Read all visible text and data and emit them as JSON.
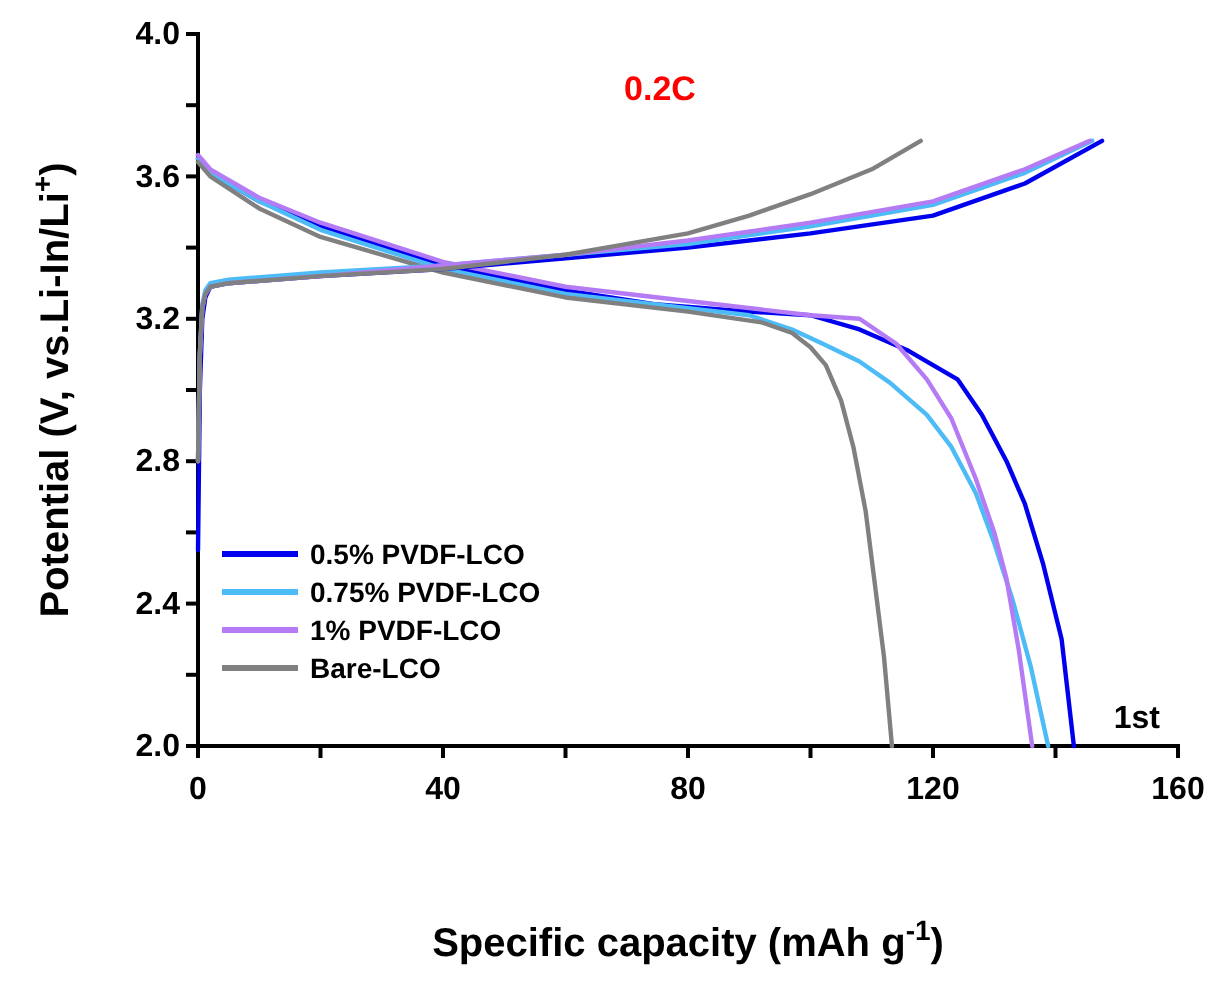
{
  "chart_data": {
    "type": "line",
    "xlabel": "Specific capacity (mAh g$^{-1}$)",
    "ylabel": "Potential (V, vs.Li-In/Li$^{+}$)",
    "annotations": [
      "0.2C",
      "1st"
    ],
    "xlim": [
      0,
      160
    ],
    "ylim": [
      2.0,
      4.0
    ],
    "xticks": [
      0,
      {
        "value": 20,
        "label": null
      },
      40,
      {
        "value": 60,
        "label": null
      },
      80,
      {
        "value": 100,
        "label": null
      },
      120,
      {
        "value": 140,
        "label": null
      },
      160
    ],
    "yticks": [
      {
        "value": 2.0,
        "label": "2.0"
      },
      {
        "value": 2.2,
        "label": null
      },
      2.4,
      {
        "value": 2.6,
        "label": null
      },
      2.8,
      {
        "value": 3.0,
        "label": null
      },
      3.2,
      {
        "value": 3.4,
        "label": null
      },
      3.6,
      {
        "value": 3.8,
        "label": null
      },
      {
        "value": 4.0,
        "label": "4.0"
      }
    ],
    "grid": false,
    "legend": "bottom left",
    "marker": "none",
    "line_style": "solid",
    "series": [
      {
        "name": "0.5% PVDF-LCO",
        "color": "#0000ee",
        "x": [
          0,
          2,
          10,
          20,
          40,
          60,
          75,
          90,
          100,
          108,
          116,
          124,
          128,
          132,
          135,
          138,
          141,
          143
        ],
        "values": [
          3.65,
          3.61,
          3.53,
          3.46,
          3.35,
          3.28,
          3.24,
          3.22,
          3.21,
          3.17,
          3.11,
          3.03,
          2.93,
          2.8,
          2.68,
          2.51,
          2.3,
          2.0
        ]
      },
      {
        "name": "0.75% PVDF-LCO",
        "color": "#4dbbf5",
        "x": [
          0,
          2,
          10,
          20,
          40,
          60,
          80,
          90,
          97,
          102,
          108,
          113,
          119,
          123,
          127,
          130,
          133,
          136,
          138.8
        ],
        "values": [
          3.65,
          3.61,
          3.53,
          3.45,
          3.34,
          3.27,
          3.23,
          3.21,
          3.17,
          3.13,
          3.08,
          3.02,
          2.93,
          2.84,
          2.71,
          2.57,
          2.41,
          2.22,
          2.0
        ]
      },
      {
        "name": "1% PVDF-LCO",
        "color": "#b57bf5",
        "x": [
          0,
          2,
          10,
          20,
          40,
          60,
          80,
          100,
          108,
          114,
          119,
          123,
          127,
          130,
          132,
          134,
          136.2
        ],
        "values": [
          3.66,
          3.62,
          3.54,
          3.47,
          3.36,
          3.29,
          3.25,
          3.21,
          3.2,
          3.13,
          3.03,
          2.92,
          2.75,
          2.6,
          2.47,
          2.27,
          2.0
        ]
      },
      {
        "name": "Bare-LCO",
        "color": "#808080",
        "x": [
          0,
          2,
          10,
          20,
          40,
          60,
          80,
          92,
          97,
          100,
          102.5,
          105,
          107,
          109,
          110.4,
          112,
          113.3
        ],
        "values": [
          3.64,
          3.6,
          3.51,
          3.43,
          3.33,
          3.26,
          3.22,
          3.19,
          3.16,
          3.12,
          3.07,
          2.97,
          2.84,
          2.66,
          2.47,
          2.25,
          2.0
        ]
      },
      {
        "color": "#0000ee",
        "x": [
          0,
          0.3,
          0.7,
          1.2,
          2,
          5,
          20,
          40,
          60,
          80,
          100,
          120,
          135,
          147.6
        ],
        "values": [
          2.55,
          3.0,
          3.2,
          3.26,
          3.29,
          3.3,
          3.32,
          3.34,
          3.37,
          3.4,
          3.44,
          3.49,
          3.58,
          3.7
        ]
      },
      {
        "color": "#4dbbf5",
        "x": [
          0,
          0.3,
          0.7,
          1.2,
          2,
          5,
          20,
          40,
          60,
          80,
          100,
          120,
          135,
          146
        ],
        "values": [
          2.8,
          3.1,
          3.24,
          3.28,
          3.3,
          3.31,
          3.33,
          3.35,
          3.38,
          3.41,
          3.46,
          3.52,
          3.61,
          3.7
        ]
      },
      {
        "color": "#b57bf5",
        "x": [
          0,
          0.3,
          0.7,
          1.2,
          2,
          5,
          20,
          40,
          60,
          80,
          100,
          120,
          135,
          145.6
        ],
        "values": [
          2.8,
          3.1,
          3.23,
          3.27,
          3.29,
          3.3,
          3.32,
          3.35,
          3.38,
          3.42,
          3.47,
          3.53,
          3.62,
          3.7
        ]
      },
      {
        "color": "#808080",
        "x": [
          0,
          0.3,
          0.7,
          1.2,
          2,
          5,
          20,
          40,
          60,
          80,
          90,
          100,
          110,
          118
        ],
        "values": [
          2.8,
          3.1,
          3.23,
          3.27,
          3.29,
          3.3,
          3.32,
          3.34,
          3.38,
          3.44,
          3.49,
          3.55,
          3.62,
          3.7
        ]
      }
    ]
  }
}
